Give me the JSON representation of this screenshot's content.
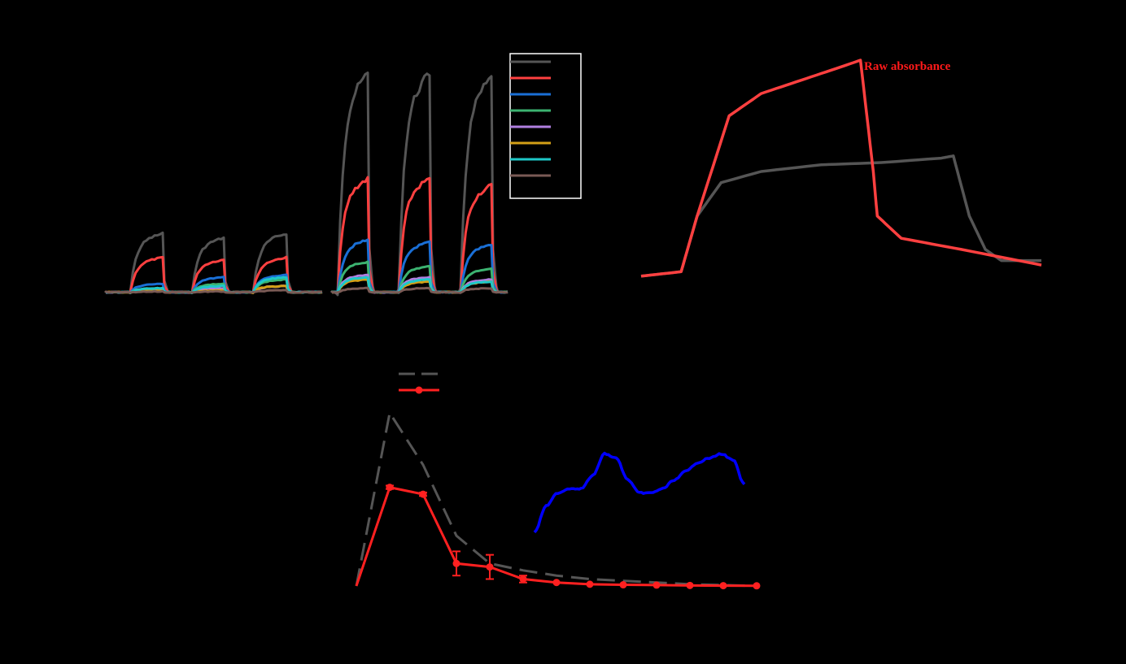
{
  "chart_data": [
    {
      "type": "line",
      "panel": "top-left",
      "title": "",
      "xlabel": "",
      "ylabel": "",
      "legend": {
        "placement": "top-right",
        "frame": true,
        "labels": [
          "",
          "",
          "",
          "",
          "",
          "",
          "",
          ""
        ]
      },
      "series": [
        {
          "color": "#555555",
          "pulse_heights": [
            0.27,
            0.25,
            0.27,
            1.0,
            1.0,
            0.98
          ]
        },
        {
          "color": "#ff4040",
          "pulse_heights": [
            0.16,
            0.15,
            0.16,
            0.52,
            0.52,
            0.49
          ]
        },
        {
          "color": "#1a6fd6",
          "pulse_heights": [
            0.04,
            0.07,
            0.08,
            0.24,
            0.23,
            0.22
          ]
        },
        {
          "color": "#3cb371",
          "pulse_heights": [
            0.02,
            0.04,
            0.06,
            0.14,
            0.12,
            0.11
          ]
        },
        {
          "color": "#b07fe0",
          "pulse_heights": [
            0.01,
            0.02,
            0.03,
            0.08,
            0.07,
            0.06
          ]
        },
        {
          "color": "#d4a017",
          "pulse_heights": [
            0.01,
            0.01,
            0.03,
            0.06,
            0.05,
            0.05
          ]
        },
        {
          "color": "#1ec8c8",
          "pulse_heights": [
            0.02,
            0.03,
            0.07,
            0.07,
            0.06,
            0.05
          ]
        },
        {
          "color": "#7a5a55",
          "pulse_heights": [
            0.005,
            0.005,
            0.01,
            0.02,
            0.02,
            0.02
          ]
        }
      ]
    },
    {
      "type": "line",
      "panel": "top-right",
      "title": "",
      "xlabel": "",
      "ylabel": "",
      "annotation": "Raw absorbance",
      "annotation_color": "#ff1a1a",
      "series": [
        {
          "color": "#ff4040",
          "points": [
            [
              0,
              0.03
            ],
            [
              0.1,
              0.05
            ],
            [
              0.14,
              0.3
            ],
            [
              0.22,
              0.75
            ],
            [
              0.3,
              0.85
            ],
            [
              0.4,
              0.91
            ],
            [
              0.5,
              0.97
            ],
            [
              0.548,
              1.0
            ],
            [
              0.58,
              0.5
            ],
            [
              0.59,
              0.3
            ],
            [
              0.65,
              0.2
            ],
            [
              0.8,
              0.15
            ],
            [
              1.0,
              0.08
            ]
          ]
        },
        {
          "color": "#555555",
          "points": [
            [
              0,
              0.03
            ],
            [
              0.1,
              0.05
            ],
            [
              0.14,
              0.3
            ],
            [
              0.2,
              0.45
            ],
            [
              0.3,
              0.5
            ],
            [
              0.45,
              0.53
            ],
            [
              0.6,
              0.54
            ],
            [
              0.75,
              0.56
            ],
            [
              0.78,
              0.57
            ],
            [
              0.82,
              0.3
            ],
            [
              0.86,
              0.15
            ],
            [
              0.9,
              0.1
            ],
            [
              1.0,
              0.1
            ]
          ]
        }
      ]
    },
    {
      "type": "line",
      "panel": "bottom",
      "title": "",
      "xlabel": "",
      "ylabel": "",
      "legend": {
        "placement": "top-center",
        "labels": [
          "",
          ""
        ]
      },
      "x": [
        0,
        1,
        2,
        3,
        4,
        5,
        6,
        7,
        8,
        9,
        10,
        11,
        12
      ],
      "series": [
        {
          "style": "dashed",
          "color": "#555555",
          "values": [
            0,
            1.0,
            0.7,
            0.29,
            0.13,
            0.09,
            0.06,
            0.04,
            0.03,
            0.02,
            0.01,
            0.005,
            0.0
          ]
        },
        {
          "style": "solid-marker",
          "color": "#ff2020",
          "values": [
            0,
            0.57,
            0.53,
            0.13,
            0.11,
            0.04,
            0.02,
            0.01,
            0.007,
            0.005,
            0.003,
            0.002,
            0.001
          ],
          "errors": [
            0,
            0.01,
            0.01,
            0.07,
            0.07,
            0.02,
            0.0,
            0.0,
            0.0,
            0.0,
            0.0,
            0.0,
            0.0
          ]
        }
      ],
      "inset": {
        "type": "line",
        "color": "#0000ff",
        "values": [
          0.05,
          0.35,
          0.5,
          0.55,
          0.55,
          0.7,
          0.95,
          0.9,
          0.65,
          0.5,
          0.5,
          0.55,
          0.65,
          0.75,
          0.85,
          0.9,
          0.95,
          0.88,
          0.6
        ]
      }
    }
  ]
}
